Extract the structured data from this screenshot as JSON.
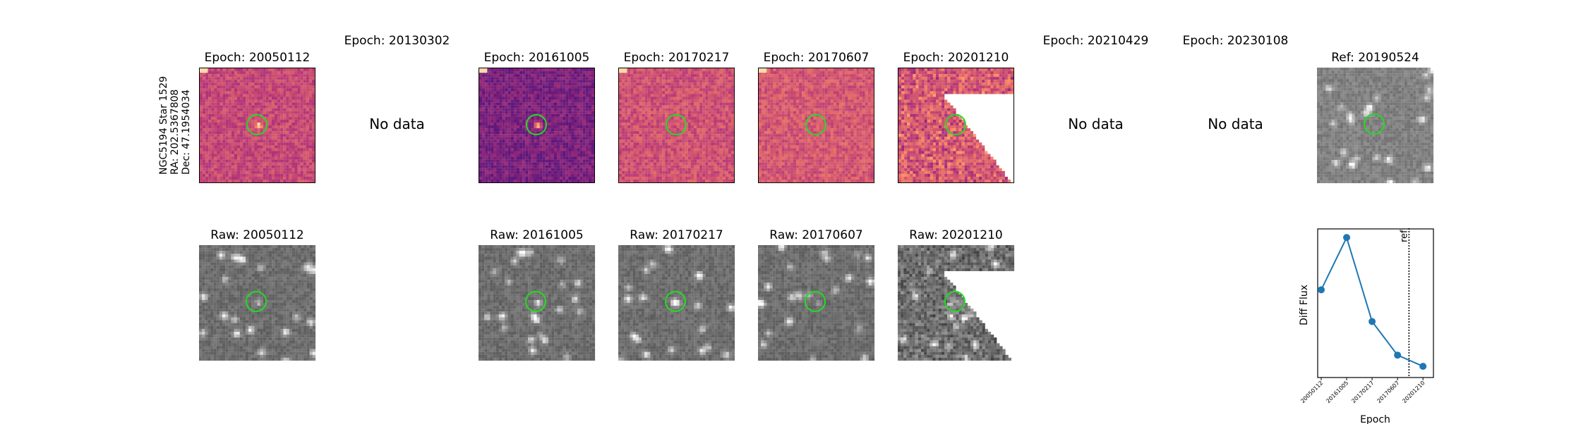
{
  "star_label": {
    "line1": "NGC5194 Star 1529",
    "line2": "RA: 202.5367808",
    "line3": "Dec: 47.1954034"
  },
  "diff_row": [
    {
      "title": "Epoch: 20050112",
      "has_data": true,
      "cmap": "magma",
      "tone": 0.55
    },
    {
      "title": "Epoch: 20130302",
      "has_data": false,
      "nodata": "No data"
    },
    {
      "title": "Epoch: 20161005",
      "has_data": true,
      "cmap": "magma",
      "tone": 0.35
    },
    {
      "title": "Epoch: 20170217",
      "has_data": true,
      "cmap": "magma",
      "tone": 0.58
    },
    {
      "title": "Epoch: 20170607",
      "has_data": true,
      "cmap": "magma",
      "tone": 0.6
    },
    {
      "title": "Epoch: 20201210",
      "has_data": true,
      "cmap": "magma",
      "tone": 0.6,
      "partial": true
    },
    {
      "title": "Epoch: 20210429",
      "has_data": false,
      "nodata": "No data"
    },
    {
      "title": "Epoch: 20230108",
      "has_data": false,
      "nodata": "No data"
    },
    {
      "title": "Ref: 20190524",
      "has_data": true,
      "cmap": "gray",
      "tone": 0.5
    }
  ],
  "raw_row": [
    {
      "title": "Raw: 20050112",
      "col": 0
    },
    {
      "title": "Raw: 20161005",
      "col": 2
    },
    {
      "title": "Raw: 20170217",
      "col": 3
    },
    {
      "title": "Raw: 20170607",
      "col": 4
    },
    {
      "title": "Raw: 20201210",
      "col": 5,
      "partial": true
    }
  ],
  "colors": {
    "circle": "#22dd22",
    "line": "#1f77b4"
  },
  "chart_data": {
    "type": "line",
    "x": [
      "20050112",
      "20161005",
      "20170217",
      "20170607",
      "20201210"
    ],
    "y": [
      0.72,
      1.0,
      0.55,
      0.37,
      0.31
    ],
    "ylabel": "Diff Flux",
    "xlabel": "Epoch",
    "ref_label": "ref",
    "ref_epoch": "20190524",
    "grid": false
  }
}
